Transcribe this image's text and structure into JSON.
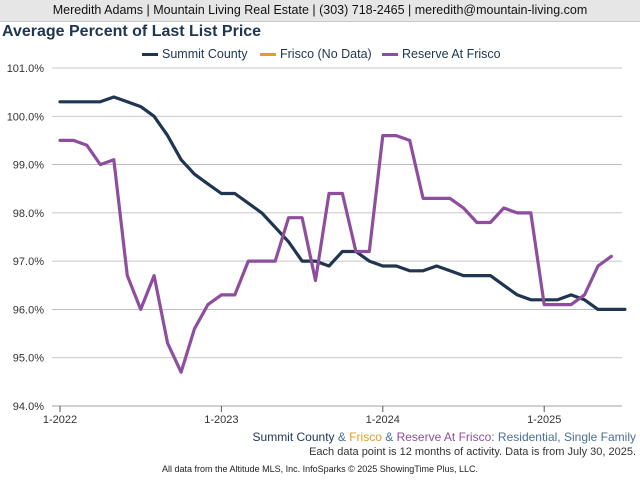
{
  "header": {
    "text": "Meredith Adams | Mountain Living Real Estate | (303) 718-2465 | meredith@mountain-living.com"
  },
  "colors": {
    "summit": "#1f3550",
    "frisco": "#e0a020",
    "reserve": "#8e4e9e",
    "grid": "#b4b4b4",
    "footer_blue": "#4a6f96"
  },
  "chart_data": {
    "type": "line",
    "title": "Average Percent of Last List Price",
    "ylim": [
      94.0,
      101.0
    ],
    "yticks": [
      "94.0%",
      "95.0%",
      "96.0%",
      "97.0%",
      "98.0%",
      "99.0%",
      "100.0%",
      "101.0%"
    ],
    "ytick_values": [
      94,
      95,
      96,
      97,
      98,
      99,
      100,
      101
    ],
    "xticks": [
      "1-2022",
      "1-2023",
      "1-2024",
      "1-2025"
    ],
    "x_start": "2022-01",
    "grid": true,
    "legend_position": "top",
    "series": [
      {
        "name": "Summit County",
        "values": [
          100.3,
          100.3,
          100.3,
          100.3,
          100.4,
          100.3,
          100.2,
          100.0,
          99.6,
          99.1,
          98.8,
          98.6,
          98.4,
          98.4,
          98.2,
          98.0,
          97.7,
          97.4,
          97.0,
          97.0,
          96.9,
          97.2,
          97.2,
          97.0,
          96.9,
          96.9,
          96.8,
          96.8,
          96.9,
          96.8,
          96.7,
          96.7,
          96.7,
          96.5,
          96.3,
          96.2,
          96.2,
          96.2,
          96.3,
          96.2,
          96.0,
          96.0,
          96.0
        ]
      },
      {
        "name": "Frisco (No Data)",
        "values": []
      },
      {
        "name": "Reserve At Frisco",
        "values": [
          99.5,
          99.5,
          99.4,
          99.0,
          99.1,
          96.7,
          96.0,
          96.7,
          95.3,
          94.7,
          95.6,
          96.1,
          96.3,
          96.3,
          97.0,
          97.0,
          97.0,
          97.9,
          97.9,
          96.6,
          98.4,
          98.4,
          97.2,
          97.2,
          99.6,
          99.6,
          99.5,
          98.3,
          98.3,
          98.3,
          98.1,
          97.8,
          97.8,
          98.1,
          98.0,
          98.0,
          96.1,
          96.1,
          96.1,
          96.3,
          96.9,
          97.1
        ]
      }
    ]
  },
  "footer": {
    "parts": [
      {
        "text": "Summit County",
        "color": "#1f3550"
      },
      {
        "text": " & ",
        "color": "#4a6f96"
      },
      {
        "text": "Frisco",
        "color": "#e0a020"
      },
      {
        "text": " & ",
        "color": "#4a6f96"
      },
      {
        "text": "Reserve At Frisco",
        "color": "#8e4e9e"
      },
      {
        "text": ": Residential, Single Family",
        "color": "#4a6f96"
      }
    ],
    "note": "Each data point is 12 months of activity. Data is from July 30, 2025.",
    "source": "All data from the Altitude MLS, Inc. InfoSparks © 2025 ShowingTime Plus, LLC."
  }
}
